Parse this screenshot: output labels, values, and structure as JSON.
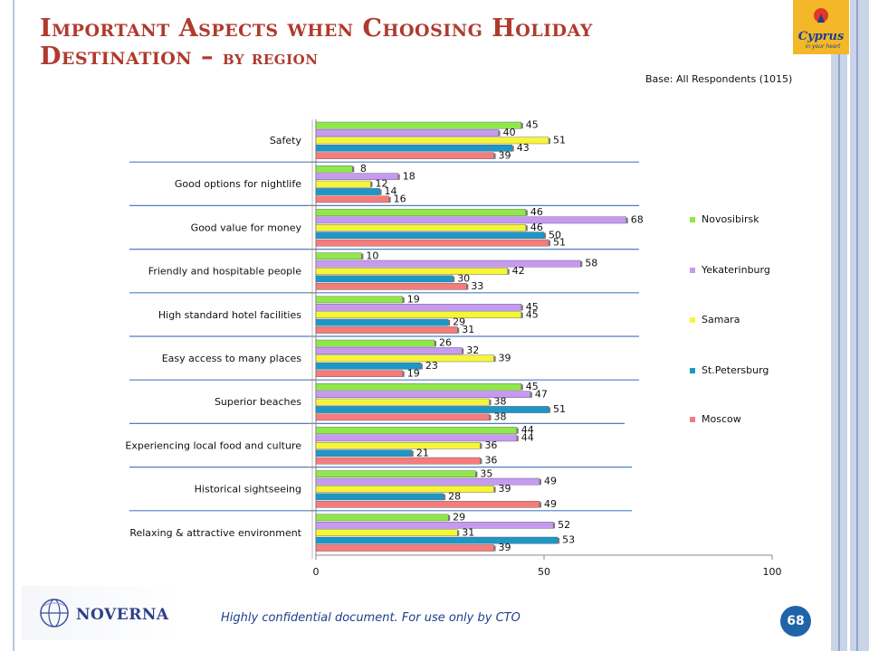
{
  "slide": {
    "title_line1": "Important Aspects when Choosing Holiday",
    "title_line2_main": "Destination – ",
    "title_line2_sub": "by region",
    "base_note": "Base: All Respondents (1015)",
    "footer": "Highly confidential document. For use only by CTO",
    "page_number": "68",
    "logo_left_text": "NOVERNA",
    "logo_right_text": "Cyprus in your heart"
  },
  "colors": {
    "title": "#b03a2e",
    "Novosibirsk": "#8fe84a",
    "Yekaterinburg": "#c79af2",
    "Samara": "#f7f53a",
    "St.Petersburg": "#1e97c7",
    "Moscow": "#f47c7c"
  },
  "chart_data": {
    "type": "bar",
    "orientation": "horizontal",
    "categories": [
      "Safety",
      "Good options for nightlife",
      "Good value for money",
      "Friendly and hospitable people",
      "High standard hotel facilities",
      "Easy access to many places",
      "Superior beaches",
      "Experiencing local food and culture",
      "Historical sightseeing",
      "Relaxing & attractive environment"
    ],
    "series": [
      {
        "name": "Novosibirsk",
        "values": [
          45,
          8,
          46,
          10,
          19,
          26,
          45,
          44,
          35,
          29
        ]
      },
      {
        "name": "Yekaterinburg",
        "values": [
          40,
          18,
          68,
          58,
          45,
          32,
          47,
          44,
          49,
          52
        ]
      },
      {
        "name": "Samara",
        "values": [
          51,
          12,
          46,
          42,
          45,
          39,
          38,
          36,
          39,
          31
        ]
      },
      {
        "name": "St.Petersburg",
        "values": [
          43,
          14,
          50,
          30,
          29,
          23,
          51,
          21,
          28,
          53
        ]
      },
      {
        "name": "Moscow",
        "values": [
          39,
          16,
          51,
          33,
          31,
          19,
          38,
          36,
          49,
          39
        ]
      }
    ],
    "xlim": [
      0,
      100
    ],
    "xticks": [
      0,
      50,
      100
    ],
    "legend_position": "right",
    "data_labels": true
  }
}
